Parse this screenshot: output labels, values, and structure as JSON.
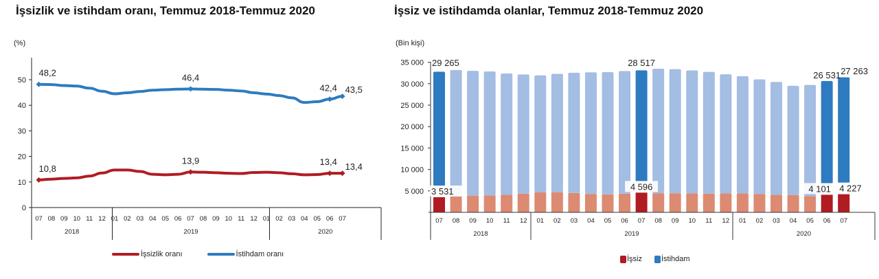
{
  "left_chart": {
    "title": "İşsizlik ve istihdam oranı, Temmuz 2018-Temmuz 2020",
    "unit": "(%)",
    "legend": [
      {
        "label": "İşsizlik oranı",
        "color": "#b01c22"
      },
      {
        "label": "İstihdam oranı",
        "color": "#2e7bbf"
      }
    ]
  },
  "right_chart": {
    "title": "İşsiz ve istihdamda olanlar, Temmuz 2018-Temmuz 2020",
    "unit": "(Bin kişi)",
    "legend": [
      {
        "label": "İşsiz",
        "color": "#b01c22"
      },
      {
        "label": "İstihdam",
        "color": "#2e7bbf"
      }
    ]
  },
  "chart_data": [
    {
      "type": "line",
      "title": "İşsizlik ve istihdam oranı, Temmuz 2018-Temmuz 2020",
      "ylabel": "(%)",
      "xlabel": "",
      "ylim": [
        0,
        58
      ],
      "yticks": [
        0,
        10,
        20,
        30,
        40,
        50
      ],
      "grid": false,
      "legend_position": "bottom",
      "categories": [
        "07",
        "08",
        "09",
        "10",
        "11",
        "12",
        "01",
        "02",
        "03",
        "04",
        "05",
        "06",
        "07",
        "08",
        "09",
        "10",
        "11",
        "12",
        "01",
        "02",
        "03",
        "04",
        "05",
        "06",
        "07"
      ],
      "year_groups": [
        {
          "label": "2018",
          "start": 0,
          "end": 5
        },
        {
          "label": "2019",
          "start": 6,
          "end": 17
        },
        {
          "label": "2020",
          "start": 18,
          "end": 24
        }
      ],
      "series": [
        {
          "name": "İşsizlik oranı",
          "color": "#b01c22",
          "values": [
            10.8,
            11.1,
            11.4,
            11.6,
            12.3,
            13.5,
            14.7,
            14.7,
            14.1,
            13.0,
            12.8,
            13.0,
            13.9,
            13.8,
            13.6,
            13.4,
            13.3,
            13.7,
            13.8,
            13.6,
            13.2,
            12.8,
            12.9,
            13.4,
            13.4
          ],
          "labels": {
            "0": "10,8",
            "12": "13,9",
            "23": "13,4",
            "24": "13,4"
          }
        },
        {
          "name": "İstihdam oranı",
          "color": "#2e7bbf",
          "values": [
            48.2,
            48.1,
            47.7,
            47.5,
            46.7,
            45.5,
            44.5,
            44.9,
            45.4,
            45.9,
            46.1,
            46.3,
            46.4,
            46.3,
            46.2,
            45.9,
            45.6,
            44.9,
            44.4,
            43.8,
            42.9,
            41.1,
            41.4,
            42.4,
            43.5
          ],
          "labels": {
            "0": "48,2",
            "12": "46,4",
            "23": "42,4",
            "24": "43,5"
          }
        }
      ]
    },
    {
      "type": "bar",
      "stacked": true,
      "title": "İşsiz ve istihdamda olanlar, Temmuz 2018-Temmuz 2020",
      "ylabel": "(Bin kişi)",
      "xlabel": "",
      "ylim": [
        0,
        35000
      ],
      "yticks": [
        "5 000",
        "10 000",
        "15 000",
        "20 000",
        "25 000",
        "30 000",
        "35 000"
      ],
      "grid": false,
      "legend_position": "bottom",
      "categories": [
        "07",
        "08",
        "09",
        "10",
        "11",
        "12",
        "01",
        "02",
        "03",
        "04",
        "05",
        "06",
        "07",
        "08",
        "09",
        "10",
        "11",
        "12",
        "01",
        "02",
        "03",
        "04",
        "05",
        "06",
        "07"
      ],
      "year_groups": [
        {
          "label": "2018",
          "start": 0,
          "end": 5
        },
        {
          "label": "2019",
          "start": 6,
          "end": 17
        },
        {
          "label": "2020",
          "start": 18,
          "end": 24
        }
      ],
      "highlighted": [
        0,
        12,
        23,
        24
      ],
      "series": [
        {
          "name": "İşsiz",
          "color": "#b01c22",
          "light_color": "#dd8a73",
          "values": [
            3531,
            3700,
            3900,
            3950,
            4100,
            4350,
            4700,
            4700,
            4500,
            4300,
            4200,
            4350,
            4596,
            4450,
            4450,
            4400,
            4350,
            4400,
            4400,
            4300,
            4100,
            4050,
            3800,
            4101,
            4227
          ],
          "labels": {
            "0": "3 531",
            "12": "4 596",
            "23": "4 101",
            "24": "4 227"
          }
        },
        {
          "name": "İstihdam",
          "color": "#2e7bbf",
          "light_color": "#a3bde3",
          "values": [
            29265,
            29500,
            29100,
            28900,
            28300,
            27800,
            27250,
            27600,
            28050,
            28350,
            28500,
            28600,
            28517,
            29050,
            28950,
            28700,
            28400,
            27800,
            27350,
            26700,
            26300,
            25450,
            25900,
            26531,
            27263
          ],
          "labels": {
            "0": "29 265",
            "12": "28 517",
            "23": "26 531",
            "24": "27 263"
          }
        }
      ]
    }
  ]
}
